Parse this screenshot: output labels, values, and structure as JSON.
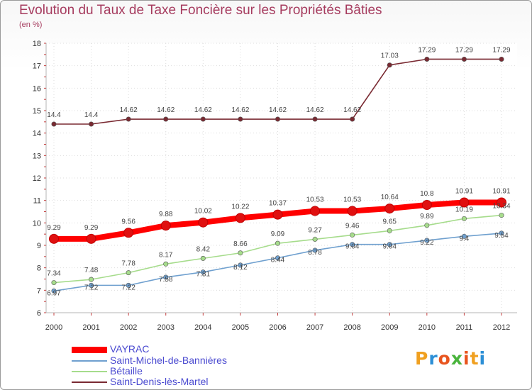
{
  "chart_data": {
    "type": "line",
    "title": "Evolution du Taux de Taxe Foncière sur les Propriétés Bâties",
    "subtitle": "(en %)",
    "xlabel": "",
    "ylabel": "",
    "ylim": [
      6,
      18
    ],
    "yticks": [
      "6",
      "7",
      "8",
      "9",
      "10",
      "11",
      "12",
      "13",
      "14",
      "15",
      "16",
      "17",
      "18"
    ],
    "categories": [
      "2000",
      "2001",
      "2002",
      "2003",
      "2004",
      "2005",
      "2006",
      "2007",
      "2008",
      "2009",
      "2010",
      "2011",
      "2012"
    ],
    "legend_position": "bottom-left",
    "series": [
      {
        "name": "VAYRAC",
        "color": "#ff0000",
        "values": [
          9.29,
          9.29,
          9.56,
          9.88,
          10.02,
          10.22,
          10.37,
          10.53,
          10.53,
          10.64,
          10.8,
          10.91,
          10.91
        ],
        "labels": [
          "9.29",
          "9.29",
          "9.56",
          "9.88",
          "10.02",
          "10.22",
          "10.37",
          "10.53",
          "10.53",
          "10.64",
          "10.8",
          "10.91",
          "10.91"
        ]
      },
      {
        "name": "Saint-Michel-de-Bannières",
        "color": "#6fa0cf",
        "values": [
          6.97,
          7.22,
          7.22,
          7.58,
          7.81,
          8.12,
          8.44,
          8.78,
          9.04,
          9.04,
          9.22,
          9.4,
          9.54
        ],
        "labels": [
          "6.97",
          "7.22",
          "7.22",
          "7.58",
          "7.81",
          "8.12",
          "8.44",
          "8.78",
          "9.04",
          "9.04",
          "9.22",
          "9.4",
          "9.54"
        ]
      },
      {
        "name": "Bétaille",
        "color": "#a6dc8c",
        "values": [
          7.34,
          7.48,
          7.78,
          8.17,
          8.42,
          8.66,
          9.09,
          9.27,
          9.46,
          9.65,
          9.89,
          10.19,
          10.34
        ],
        "labels": [
          "7.34",
          "7.48",
          "7.78",
          "8.17",
          "8.42",
          "8.66",
          "9.09",
          "9.27",
          "9.46",
          "9.65",
          "9.89",
          "10.19",
          "10.34"
        ]
      },
      {
        "name": "Saint-Denis-lès-Martel",
        "color": "#7a2a32",
        "values": [
          14.4,
          14.4,
          14.62,
          14.62,
          14.62,
          14.62,
          14.62,
          14.62,
          14.62,
          17.03,
          17.29,
          17.29,
          17.29
        ],
        "labels": [
          "14.4",
          "14.4",
          "14.62",
          "14.62",
          "14.62",
          "14.62",
          "14.62",
          "14.62",
          "14.62",
          "17.03",
          "17.29",
          "17.29",
          "17.29"
        ]
      }
    ]
  },
  "logo": {
    "letters": [
      "P",
      "r",
      "o",
      "x",
      "i",
      "t",
      "i"
    ],
    "colors": [
      "#f0a020",
      "#2c8fd6",
      "#e8541e",
      "#49b43c",
      "#e8541e",
      "#f0a020",
      "#2c8fd6"
    ]
  }
}
